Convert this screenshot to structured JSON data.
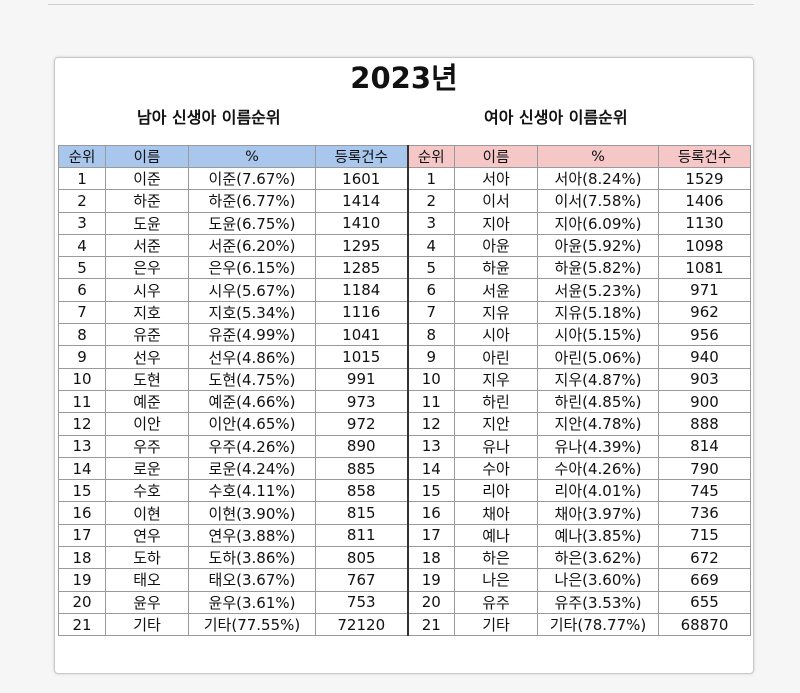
{
  "title": "2023년",
  "male": {
    "subtitle": "남아 신생아 이름순위",
    "headers": [
      "순위",
      "이름",
      "%",
      "등록건수"
    ],
    "rows": [
      {
        "rank": "1",
        "name": "이준",
        "pct": "이준(7.67%)",
        "count": "1601"
      },
      {
        "rank": "2",
        "name": "하준",
        "pct": "하준(6.77%)",
        "count": "1414"
      },
      {
        "rank": "3",
        "name": "도윤",
        "pct": "도윤(6.75%)",
        "count": "1410"
      },
      {
        "rank": "4",
        "name": "서준",
        "pct": "서준(6.20%)",
        "count": "1295"
      },
      {
        "rank": "5",
        "name": "은우",
        "pct": "은우(6.15%)",
        "count": "1285"
      },
      {
        "rank": "6",
        "name": "시우",
        "pct": "시우(5.67%)",
        "count": "1184"
      },
      {
        "rank": "7",
        "name": "지호",
        "pct": "지호(5.34%)",
        "count": "1116"
      },
      {
        "rank": "8",
        "name": "유준",
        "pct": "유준(4.99%)",
        "count": "1041"
      },
      {
        "rank": "9",
        "name": "선우",
        "pct": "선우(4.86%)",
        "count": "1015"
      },
      {
        "rank": "10",
        "name": "도현",
        "pct": "도현(4.75%)",
        "count": "991"
      },
      {
        "rank": "11",
        "name": "예준",
        "pct": "예준(4.66%)",
        "count": "973"
      },
      {
        "rank": "12",
        "name": "이안",
        "pct": "이안(4.65%)",
        "count": "972"
      },
      {
        "rank": "13",
        "name": "우주",
        "pct": "우주(4.26%)",
        "count": "890"
      },
      {
        "rank": "14",
        "name": "로운",
        "pct": "로운(4.24%)",
        "count": "885"
      },
      {
        "rank": "15",
        "name": "수호",
        "pct": "수호(4.11%)",
        "count": "858"
      },
      {
        "rank": "16",
        "name": "이현",
        "pct": "이현(3.90%)",
        "count": "815"
      },
      {
        "rank": "17",
        "name": "연우",
        "pct": "연우(3.88%)",
        "count": "811"
      },
      {
        "rank": "18",
        "name": "도하",
        "pct": "도하(3.86%)",
        "count": "805"
      },
      {
        "rank": "19",
        "name": "태오",
        "pct": "태오(3.67%)",
        "count": "767"
      },
      {
        "rank": "20",
        "name": "윤우",
        "pct": "윤우(3.61%)",
        "count": "753"
      },
      {
        "rank": "21",
        "name": "기타",
        "pct": "기타(77.55%)",
        "count": "72120"
      }
    ]
  },
  "female": {
    "subtitle": "여아 신생아 이름순위",
    "headers": [
      "순위",
      "이름",
      "%",
      "등록건수"
    ],
    "rows": [
      {
        "rank": "1",
        "name": "서아",
        "pct": "서아(8.24%)",
        "count": "1529"
      },
      {
        "rank": "2",
        "name": "이서",
        "pct": "이서(7.58%)",
        "count": "1406"
      },
      {
        "rank": "3",
        "name": "지아",
        "pct": "지아(6.09%)",
        "count": "1130"
      },
      {
        "rank": "4",
        "name": "아윤",
        "pct": "아윤(5.92%)",
        "count": "1098"
      },
      {
        "rank": "5",
        "name": "하윤",
        "pct": "하윤(5.82%)",
        "count": "1081"
      },
      {
        "rank": "6",
        "name": "서윤",
        "pct": "서윤(5.23%)",
        "count": "971"
      },
      {
        "rank": "7",
        "name": "지유",
        "pct": "지유(5.18%)",
        "count": "962"
      },
      {
        "rank": "8",
        "name": "시아",
        "pct": "시아(5.15%)",
        "count": "956"
      },
      {
        "rank": "9",
        "name": "아린",
        "pct": "아린(5.06%)",
        "count": "940"
      },
      {
        "rank": "10",
        "name": "지우",
        "pct": "지우(4.87%)",
        "count": "903"
      },
      {
        "rank": "11",
        "name": "하린",
        "pct": "하린(4.85%)",
        "count": "900"
      },
      {
        "rank": "12",
        "name": "지안",
        "pct": "지안(4.78%)",
        "count": "888"
      },
      {
        "rank": "13",
        "name": "유나",
        "pct": "유나(4.39%)",
        "count": "814"
      },
      {
        "rank": "14",
        "name": "수아",
        "pct": "수아(4.26%)",
        "count": "790"
      },
      {
        "rank": "15",
        "name": "리아",
        "pct": "리아(4.01%)",
        "count": "745"
      },
      {
        "rank": "16",
        "name": "채아",
        "pct": "채아(3.97%)",
        "count": "736"
      },
      {
        "rank": "17",
        "name": "예나",
        "pct": "예나(3.85%)",
        "count": "715"
      },
      {
        "rank": "18",
        "name": "하은",
        "pct": "하은(3.62%)",
        "count": "672"
      },
      {
        "rank": "19",
        "name": "나은",
        "pct": "나은(3.60%)",
        "count": "669"
      },
      {
        "rank": "20",
        "name": "유주",
        "pct": "유주(3.53%)",
        "count": "655"
      },
      {
        "rank": "21",
        "name": "기타",
        "pct": "기타(78.77%)",
        "count": "68870"
      }
    ]
  },
  "colors": {
    "male_header": "#a9c6ec",
    "female_header": "#f5c7c7"
  }
}
